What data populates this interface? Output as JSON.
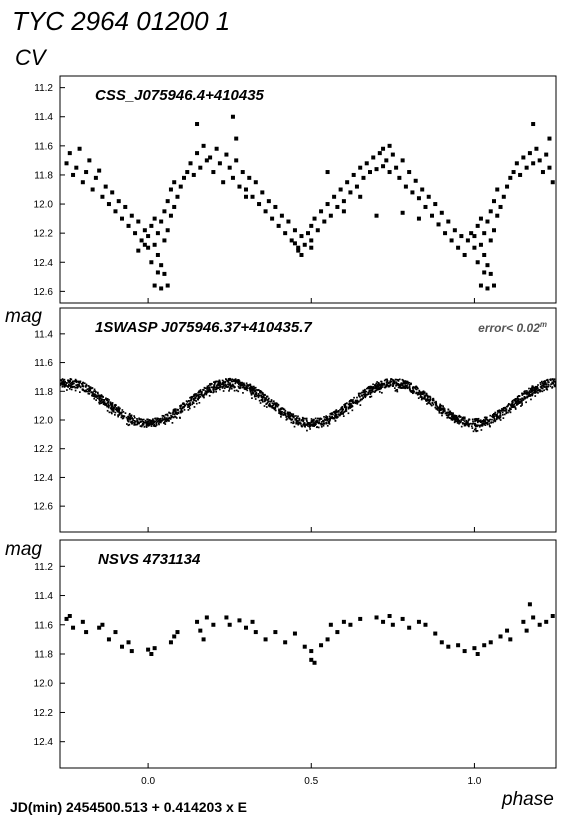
{
  "figure": {
    "title": "TYC 2964 01200 1",
    "subtitle": "CV",
    "ylabel": "mag",
    "xlabel": "phase",
    "ephemeris": "JD(min) 2454500.513  + 0.414203 x E",
    "error_note": "error< 0.02",
    "error_note_sup": "m"
  },
  "chart_data": [
    {
      "type": "scatter",
      "label": "CSS_J075946.4+410435",
      "xlabel": "phase",
      "ylabel": "mag",
      "xlim": [
        -0.27,
        1.25
      ],
      "ylim": [
        12.68,
        11.12
      ],
      "y_inverted": true,
      "yticks": [
        "11.2",
        "11.4",
        "11.6",
        "11.8",
        "12.0",
        "12.2",
        "12.4",
        "12.6"
      ],
      "xticks": [
        "0.0",
        "0.5",
        "1.0"
      ],
      "marker": "square",
      "points": [
        [
          -0.25,
          11.72
        ],
        [
          -0.24,
          11.65
        ],
        [
          -0.23,
          11.8
        ],
        [
          -0.22,
          11.75
        ],
        [
          -0.21,
          11.62
        ],
        [
          -0.2,
          11.85
        ],
        [
          -0.19,
          11.78
        ],
        [
          -0.18,
          11.7
        ],
        [
          -0.17,
          11.9
        ],
        [
          -0.16,
          11.82
        ],
        [
          -0.15,
          11.77
        ],
        [
          -0.14,
          11.95
        ],
        [
          -0.13,
          11.88
        ],
        [
          -0.12,
          12.0
        ],
        [
          -0.11,
          11.92
        ],
        [
          -0.1,
          12.05
        ],
        [
          -0.09,
          11.98
        ],
        [
          -0.08,
          12.1
        ],
        [
          -0.07,
          12.02
        ],
        [
          -0.06,
          12.15
        ],
        [
          -0.05,
          12.08
        ],
        [
          -0.04,
          12.2
        ],
        [
          -0.03,
          12.12
        ],
        [
          -0.02,
          12.25
        ],
        [
          -0.01,
          12.18
        ],
        [
          0.0,
          12.22
        ],
        [
          0.0,
          12.3
        ],
        [
          0.01,
          12.15
        ],
        [
          0.01,
          12.4
        ],
        [
          0.02,
          12.28
        ],
        [
          0.02,
          12.1
        ],
        [
          0.03,
          12.35
        ],
        [
          0.03,
          12.2
        ],
        [
          0.04,
          12.12
        ],
        [
          0.04,
          12.42
        ],
        [
          0.05,
          12.05
        ],
        [
          0.05,
          12.25
        ],
        [
          0.06,
          12.18
        ],
        [
          0.06,
          11.98
        ],
        [
          0.07,
          12.08
        ],
        [
          0.07,
          11.9
        ],
        [
          0.08,
          12.02
        ],
        [
          0.08,
          11.85
        ],
        [
          0.09,
          11.95
        ],
        [
          0.1,
          11.88
        ],
        [
          0.11,
          11.82
        ],
        [
          0.12,
          11.78
        ],
        [
          0.13,
          11.72
        ],
        [
          0.14,
          11.8
        ],
        [
          0.15,
          11.65
        ],
        [
          0.16,
          11.75
        ],
        [
          0.17,
          11.6
        ],
        [
          0.18,
          11.7
        ],
        [
          0.19,
          11.68
        ],
        [
          0.2,
          11.78
        ],
        [
          0.21,
          11.62
        ],
        [
          0.22,
          11.72
        ],
        [
          0.23,
          11.85
        ],
        [
          0.24,
          11.66
        ],
        [
          0.25,
          11.75
        ],
        [
          0.26,
          11.82
        ],
        [
          0.27,
          11.7
        ],
        [
          0.28,
          11.88
        ],
        [
          0.29,
          11.78
        ],
        [
          0.3,
          11.9
        ],
        [
          0.31,
          11.82
        ],
        [
          0.32,
          11.95
        ],
        [
          0.33,
          11.85
        ],
        [
          0.34,
          12.0
        ],
        [
          0.35,
          11.92
        ],
        [
          0.36,
          12.05
        ],
        [
          0.37,
          11.98
        ],
        [
          0.38,
          12.1
        ],
        [
          0.39,
          12.02
        ],
        [
          0.4,
          12.15
        ],
        [
          0.41,
          12.08
        ],
        [
          0.42,
          12.2
        ],
        [
          0.43,
          12.12
        ],
        [
          0.44,
          12.25
        ],
        [
          0.45,
          12.18
        ],
        [
          0.46,
          12.3
        ],
        [
          0.47,
          12.22
        ],
        [
          0.48,
          12.28
        ],
        [
          0.49,
          12.2
        ],
        [
          0.5,
          12.15
        ],
        [
          0.5,
          12.25
        ],
        [
          0.51,
          12.1
        ],
        [
          0.52,
          12.18
        ],
        [
          0.53,
          12.05
        ],
        [
          0.54,
          12.12
        ],
        [
          0.55,
          12.0
        ],
        [
          0.56,
          12.08
        ],
        [
          0.57,
          11.95
        ],
        [
          0.58,
          12.02
        ],
        [
          0.59,
          11.9
        ],
        [
          0.6,
          11.98
        ],
        [
          0.61,
          11.85
        ],
        [
          0.62,
          11.92
        ],
        [
          0.63,
          11.8
        ],
        [
          0.64,
          11.88
        ],
        [
          0.65,
          11.75
        ],
        [
          0.66,
          11.82
        ],
        [
          0.67,
          11.72
        ],
        [
          0.68,
          11.78
        ],
        [
          0.69,
          11.68
        ],
        [
          0.7,
          11.76
        ],
        [
          0.71,
          11.65
        ],
        [
          0.72,
          11.74
        ],
        [
          0.73,
          11.7
        ],
        [
          0.74,
          11.78
        ],
        [
          0.75,
          11.66
        ],
        [
          0.76,
          11.75
        ],
        [
          0.77,
          11.82
        ],
        [
          0.78,
          11.7
        ],
        [
          0.79,
          11.88
        ],
        [
          0.8,
          11.78
        ],
        [
          0.81,
          11.92
        ],
        [
          0.82,
          11.84
        ],
        [
          0.83,
          11.96
        ],
        [
          0.84,
          11.9
        ],
        [
          0.85,
          12.02
        ],
        [
          0.86,
          11.95
        ],
        [
          0.87,
          12.08
        ],
        [
          0.88,
          12.0
        ],
        [
          0.89,
          12.14
        ],
        [
          0.9,
          12.06
        ],
        [
          0.91,
          12.2
        ],
        [
          0.92,
          12.12
        ],
        [
          0.93,
          12.25
        ],
        [
          0.94,
          12.18
        ],
        [
          0.95,
          12.3
        ],
        [
          0.96,
          12.22
        ],
        [
          0.97,
          12.35
        ],
        [
          0.98,
          12.25
        ],
        [
          0.99,
          12.2
        ],
        [
          1.0,
          12.3
        ],
        [
          1.0,
          12.22
        ],
        [
          1.01,
          12.15
        ],
        [
          1.01,
          12.4
        ],
        [
          1.02,
          12.28
        ],
        [
          1.02,
          12.1
        ],
        [
          1.03,
          12.35
        ],
        [
          1.03,
          12.2
        ],
        [
          1.04,
          12.12
        ],
        [
          1.04,
          12.42
        ],
        [
          1.05,
          12.05
        ],
        [
          1.05,
          12.25
        ],
        [
          1.06,
          12.18
        ],
        [
          1.06,
          11.98
        ],
        [
          1.07,
          12.08
        ],
        [
          1.07,
          11.9
        ],
        [
          1.08,
          12.02
        ],
        [
          1.09,
          11.95
        ],
        [
          1.1,
          11.88
        ],
        [
          1.11,
          11.82
        ],
        [
          1.12,
          11.78
        ],
        [
          1.13,
          11.72
        ],
        [
          1.14,
          11.8
        ],
        [
          1.15,
          11.68
        ],
        [
          1.16,
          11.75
        ],
        [
          1.17,
          11.65
        ],
        [
          1.18,
          11.72
        ],
        [
          1.19,
          11.62
        ],
        [
          1.2,
          11.7
        ],
        [
          1.21,
          11.78
        ],
        [
          1.22,
          11.66
        ],
        [
          1.23,
          11.75
        ],
        [
          1.24,
          11.85
        ],
        [
          -0.03,
          12.32
        ],
        [
          -0.01,
          12.28
        ],
        [
          0.02,
          12.56
        ],
        [
          0.03,
          12.47
        ],
        [
          0.04,
          12.58
        ],
        [
          0.05,
          12.48
        ],
        [
          0.06,
          12.56
        ],
        [
          1.02,
          12.56
        ],
        [
          1.03,
          12.47
        ],
        [
          1.04,
          12.58
        ],
        [
          1.05,
          12.48
        ],
        [
          1.06,
          12.56
        ],
        [
          0.15,
          11.45
        ],
        [
          0.26,
          11.4
        ],
        [
          0.27,
          11.55
        ],
        [
          1.18,
          11.45
        ],
        [
          1.23,
          11.55
        ],
        [
          0.45,
          12.27
        ],
        [
          0.46,
          12.32
        ],
        [
          0.47,
          12.35
        ],
        [
          0.5,
          12.3
        ],
        [
          0.3,
          11.95
        ],
        [
          0.6,
          12.05
        ],
        [
          0.7,
          12.08
        ],
        [
          0.78,
          12.06
        ],
        [
          0.83,
          12.1
        ],
        [
          0.55,
          11.78
        ],
        [
          0.65,
          11.95
        ],
        [
          0.72,
          11.62
        ],
        [
          0.74,
          11.6
        ]
      ]
    },
    {
      "type": "scatter",
      "label": "1SWASP J075946.37+410435.7",
      "xlabel": "phase",
      "ylabel": "mag",
      "xlim": [
        -0.27,
        1.25
      ],
      "ylim": [
        12.78,
        11.22
      ],
      "y_inverted": true,
      "yticks": [
        "11.4",
        "11.6",
        "11.8",
        "12.0",
        "12.2",
        "12.4",
        "12.6"
      ],
      "xticks": [
        "0.0",
        "0.5",
        "1.0"
      ],
      "marker": "dot",
      "model": {
        "description": "dense light curve; primary minima near phases 0.0 and 1.0, secondary near 0.5",
        "mean": 11.88,
        "amplitude": 0.14,
        "period_in_phase": 0.5,
        "scatter": 0.03
      }
    },
    {
      "type": "scatter",
      "label": "NSVS 4731134",
      "xlabel": "phase",
      "ylabel": "mag",
      "xlim": [
        -0.27,
        1.25
      ],
      "ylim": [
        12.58,
        11.02
      ],
      "y_inverted": true,
      "yticks": [
        "11.2",
        "11.4",
        "11.6",
        "11.8",
        "12.0",
        "12.2",
        "12.4"
      ],
      "xticks": [
        "0.0",
        "0.5",
        "1.0"
      ],
      "marker": "square",
      "points": [
        [
          -0.25,
          11.56
        ],
        [
          -0.24,
          11.54
        ],
        [
          -0.23,
          11.62
        ],
        [
          -0.2,
          11.58
        ],
        [
          -0.19,
          11.65
        ],
        [
          -0.15,
          11.62
        ],
        [
          -0.14,
          11.6
        ],
        [
          -0.12,
          11.7
        ],
        [
          -0.1,
          11.65
        ],
        [
          -0.08,
          11.75
        ],
        [
          -0.06,
          11.72
        ],
        [
          -0.05,
          11.78
        ],
        [
          0.0,
          11.77
        ],
        [
          0.01,
          11.8
        ],
        [
          0.02,
          11.76
        ],
        [
          0.07,
          11.72
        ],
        [
          0.08,
          11.68
        ],
        [
          0.09,
          11.65
        ],
        [
          0.15,
          11.58
        ],
        [
          0.16,
          11.64
        ],
        [
          0.17,
          11.7
        ],
        [
          0.18,
          11.55
        ],
        [
          0.2,
          11.6
        ],
        [
          0.24,
          11.55
        ],
        [
          0.25,
          11.6
        ],
        [
          0.28,
          11.57
        ],
        [
          0.3,
          11.62
        ],
        [
          0.32,
          11.58
        ],
        [
          0.33,
          11.65
        ],
        [
          0.36,
          11.7
        ],
        [
          0.39,
          11.65
        ],
        [
          0.42,
          11.72
        ],
        [
          0.45,
          11.66
        ],
        [
          0.48,
          11.75
        ],
        [
          0.5,
          11.78
        ],
        [
          0.5,
          11.84
        ],
        [
          0.51,
          11.86
        ],
        [
          0.53,
          11.74
        ],
        [
          0.55,
          11.7
        ],
        [
          0.56,
          11.6
        ],
        [
          0.58,
          11.65
        ],
        [
          0.6,
          11.58
        ],
        [
          0.62,
          11.6
        ],
        [
          0.65,
          11.56
        ],
        [
          0.7,
          11.55
        ],
        [
          0.72,
          11.58
        ],
        [
          0.74,
          11.54
        ],
        [
          0.75,
          11.6
        ],
        [
          0.78,
          11.56
        ],
        [
          0.8,
          11.62
        ],
        [
          0.83,
          11.58
        ],
        [
          0.85,
          11.6
        ],
        [
          0.88,
          11.66
        ],
        [
          0.9,
          11.72
        ],
        [
          0.92,
          11.75
        ],
        [
          0.95,
          11.74
        ],
        [
          0.97,
          11.78
        ],
        [
          1.0,
          11.76
        ],
        [
          1.01,
          11.8
        ],
        [
          1.03,
          11.74
        ],
        [
          1.05,
          11.72
        ],
        [
          1.08,
          11.68
        ],
        [
          1.1,
          11.64
        ],
        [
          1.11,
          11.7
        ],
        [
          1.15,
          11.58
        ],
        [
          1.16,
          11.64
        ],
        [
          1.17,
          11.46
        ],
        [
          1.18,
          11.55
        ],
        [
          1.2,
          11.6
        ],
        [
          1.22,
          11.58
        ],
        [
          1.24,
          11.54
        ]
      ]
    }
  ]
}
